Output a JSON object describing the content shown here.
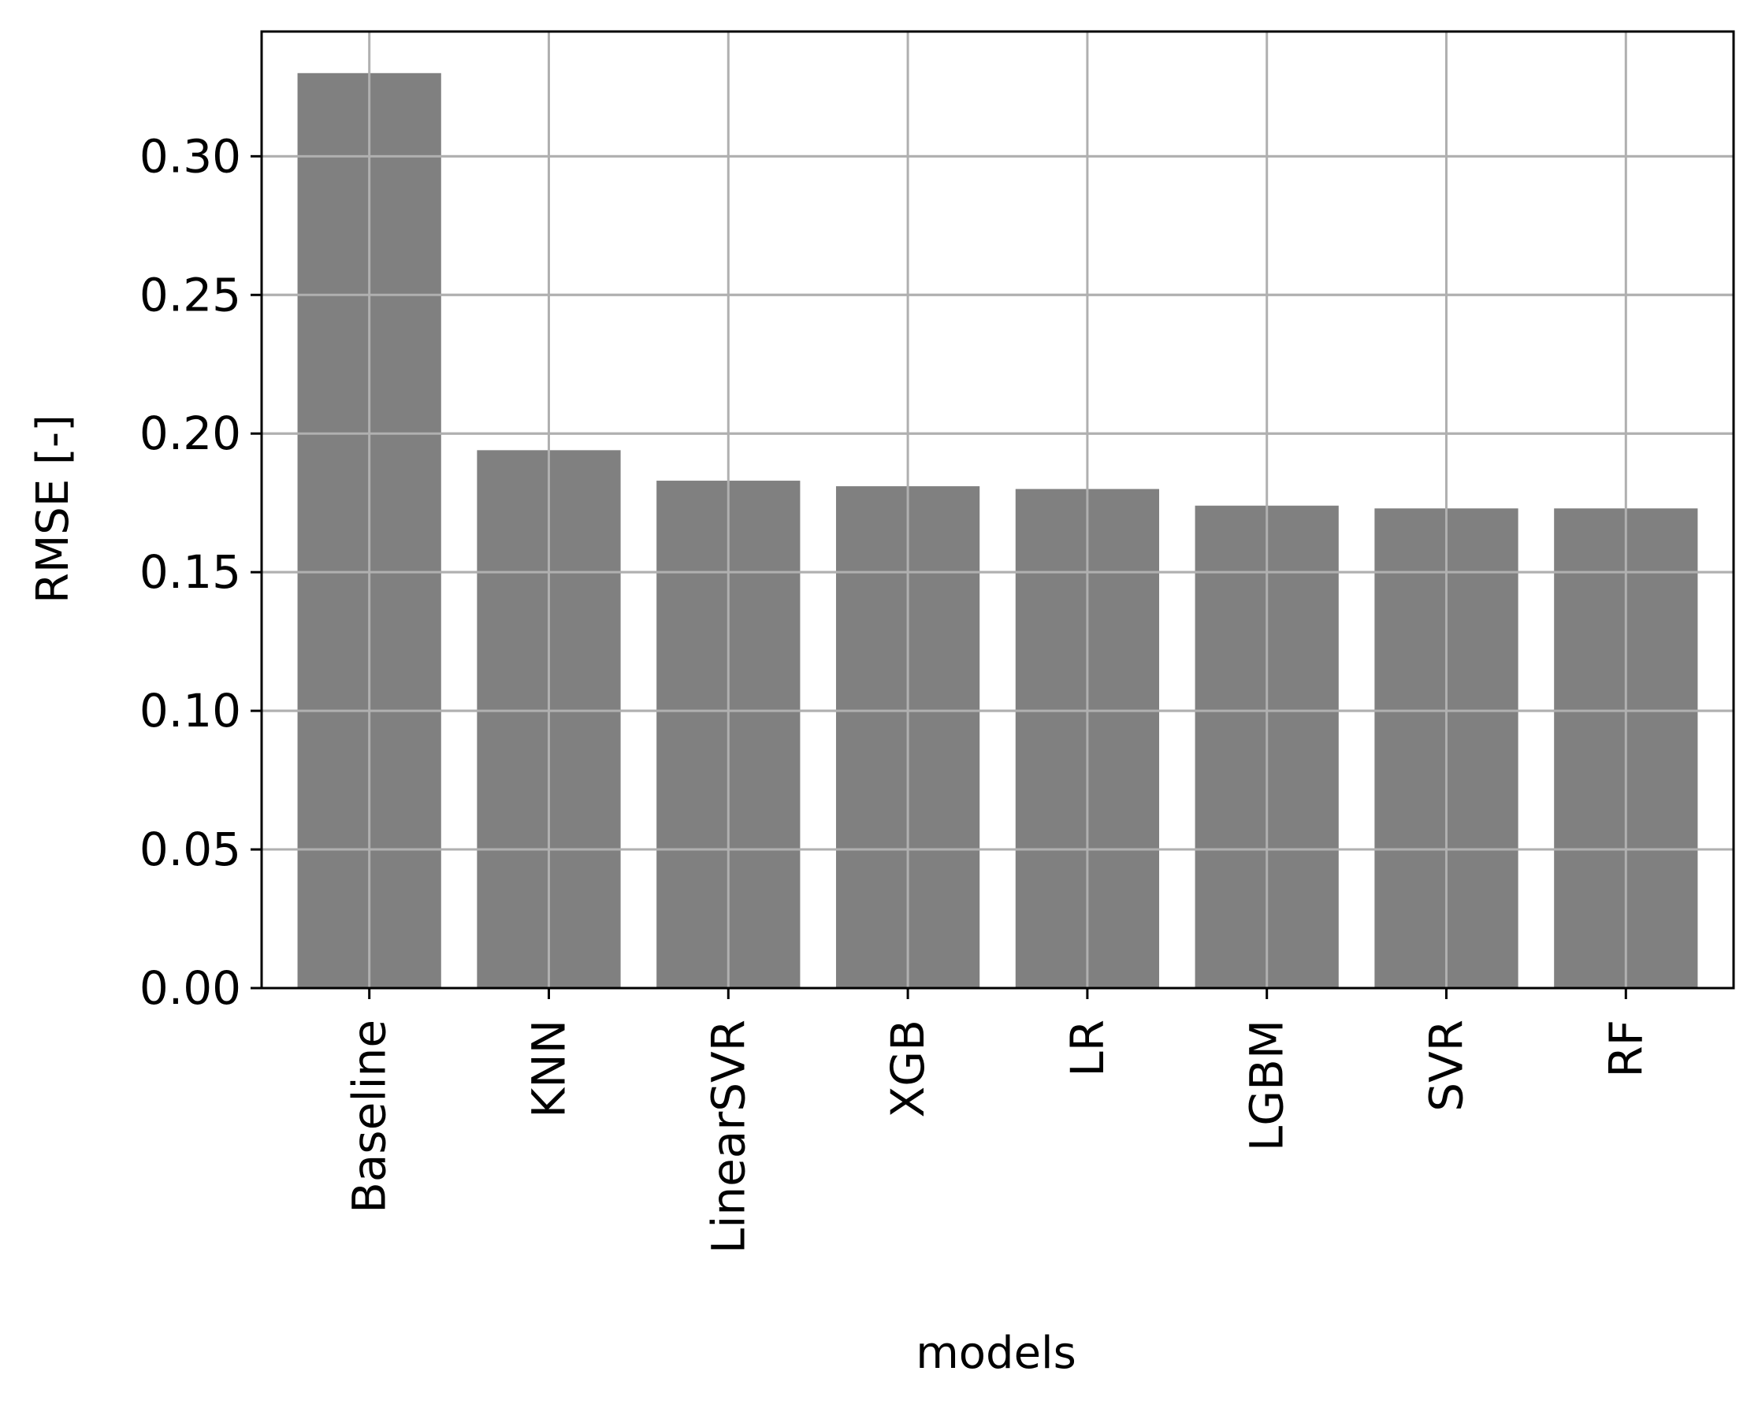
{
  "chart_data": {
    "type": "bar",
    "title": "",
    "xlabel": "models",
    "ylabel": "RMSE [-]",
    "categories": [
      "Baseline",
      "KNN",
      "LinearSVR",
      "XGB",
      "LR",
      "LGBM",
      "SVR",
      "RF"
    ],
    "values": [
      0.33,
      0.194,
      0.183,
      0.181,
      0.18,
      0.174,
      0.173,
      0.173
    ],
    "ylim": [
      0,
      0.345
    ],
    "yticks": [
      {
        "value": 0.0,
        "label": "0.00"
      },
      {
        "value": 0.05,
        "label": "0.05"
      },
      {
        "value": 0.1,
        "label": "0.10"
      },
      {
        "value": 0.15,
        "label": "0.15"
      },
      {
        "value": 0.2,
        "label": "0.20"
      },
      {
        "value": 0.25,
        "label": "0.25"
      },
      {
        "value": 0.3,
        "label": "0.30"
      }
    ],
    "grid": true,
    "bar_color": "#808080",
    "grid_color": "#b0b0b0",
    "axis_color": "#000000"
  }
}
